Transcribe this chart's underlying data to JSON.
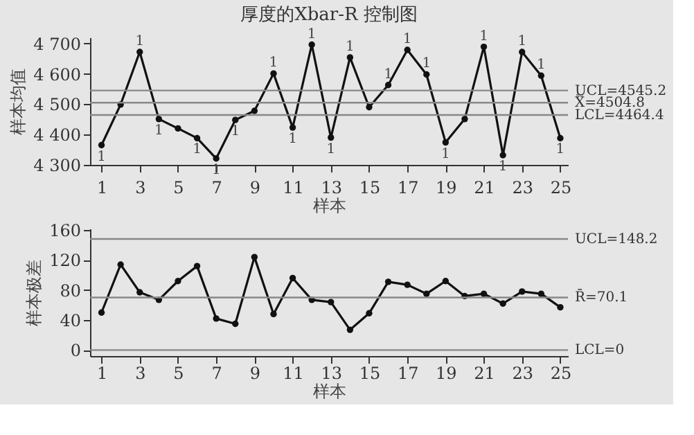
{
  "chart_data": [
    {
      "type": "line",
      "title": "厚度的Xbar-R 控制图",
      "xlabel": "样本",
      "ylabel": "样本均值",
      "x": [
        1,
        2,
        3,
        4,
        5,
        6,
        7,
        8,
        9,
        10,
        11,
        12,
        13,
        14,
        15,
        16,
        17,
        18,
        19,
        20,
        21,
        22,
        23,
        24,
        25
      ],
      "series": [
        {
          "color": "#111111",
          "values": [
            4365,
            4499,
            4672,
            4451,
            4420,
            4388,
            4321,
            4448,
            4478,
            4601,
            4423,
            4696,
            4390,
            4654,
            4490,
            4563,
            4679,
            4598,
            4374,
            4451,
            4689,
            4332,
            4672,
            4594,
            4388
          ]
        }
      ],
      "xlim": [
        0.4,
        25.4
      ],
      "xticks": [
        1,
        3,
        5,
        7,
        9,
        11,
        13,
        15,
        17,
        19,
        21,
        23,
        25
      ],
      "ylim": [
        4300,
        4720
      ],
      "yticks": [
        {
          "value": 4300,
          "label": "4 300"
        },
        {
          "value": 4400,
          "label": "4 400"
        },
        {
          "value": 4500,
          "label": "4 500"
        },
        {
          "value": 4600,
          "label": "4 600"
        },
        {
          "value": 4700,
          "label": "4 700"
        }
      ],
      "ref_lines": [
        {
          "axis": "y",
          "value": 4545.2,
          "label": "UCL=4545.2",
          "color": "#888888"
        },
        {
          "axis": "y",
          "value": 4504.8,
          "label": "X̿=4504.8",
          "color": "#888888"
        },
        {
          "axis": "y",
          "value": 4464.4,
          "label": "LCL=4464.4",
          "color": "#888888"
        }
      ],
      "annotations": [
        {
          "text": "1",
          "x": 1,
          "y": 4365
        },
        {
          "text": "1",
          "x": 3,
          "y": 4672
        },
        {
          "text": "1",
          "x": 4,
          "y": 4451
        },
        {
          "text": "1",
          "x": 6,
          "y": 4388
        },
        {
          "text": "1",
          "x": 7,
          "y": 4321
        },
        {
          "text": "1",
          "x": 8,
          "y": 4448
        },
        {
          "text": "1",
          "x": 10,
          "y": 4601
        },
        {
          "text": "1",
          "x": 11,
          "y": 4423
        },
        {
          "text": "1",
          "x": 12,
          "y": 4696
        },
        {
          "text": "1",
          "x": 13,
          "y": 4390
        },
        {
          "text": "1",
          "x": 14,
          "y": 4654
        },
        {
          "text": "1",
          "x": 16,
          "y": 4563
        },
        {
          "text": "1",
          "x": 17,
          "y": 4679
        },
        {
          "text": "1",
          "x": 18,
          "y": 4598
        },
        {
          "text": "1",
          "x": 19,
          "y": 4374
        },
        {
          "text": "1",
          "x": 21,
          "y": 4689
        },
        {
          "text": "1",
          "x": 22,
          "y": 4332
        },
        {
          "text": "1",
          "x": 23,
          "y": 4672
        },
        {
          "text": "1",
          "x": 24,
          "y": 4594
        },
        {
          "text": "1",
          "x": 25,
          "y": 4388
        }
      ],
      "grid": false,
      "marker": "circle",
      "line_style": "solid"
    },
    {
      "type": "line",
      "xlabel": "样本",
      "ylabel": "样本极差",
      "x": [
        1,
        2,
        3,
        4,
        5,
        6,
        7,
        8,
        9,
        10,
        11,
        12,
        13,
        14,
        15,
        16,
        17,
        18,
        19,
        20,
        21,
        22,
        23,
        24,
        25
      ],
      "series": [
        {
          "color": "#111111",
          "values": [
            50,
            114,
            77,
            67,
            92,
            112,
            42,
            35,
            124,
            48,
            96,
            67,
            64,
            27,
            49,
            91,
            87,
            75,
            92,
            72,
            75,
            62,
            78,
            75,
            57
          ]
        }
      ],
      "xlim": [
        0.4,
        25.4
      ],
      "xticks": [
        1,
        3,
        5,
        7,
        9,
        11,
        13,
        15,
        17,
        19,
        21,
        23,
        25
      ],
      "ylim": [
        -8,
        162
      ],
      "yticks": [
        0,
        40,
        80,
        120,
        160
      ],
      "ref_lines": [
        {
          "axis": "y",
          "value": 148.2,
          "label": "UCL=148.2",
          "color": "#888888"
        },
        {
          "axis": "y",
          "value": 70.1,
          "label": "R̄=70.1",
          "color": "#888888"
        },
        {
          "axis": "y",
          "value": 0,
          "label": "LCL=0",
          "color": "#888888"
        }
      ],
      "grid": false,
      "marker": "circle",
      "line_style": "solid"
    }
  ]
}
